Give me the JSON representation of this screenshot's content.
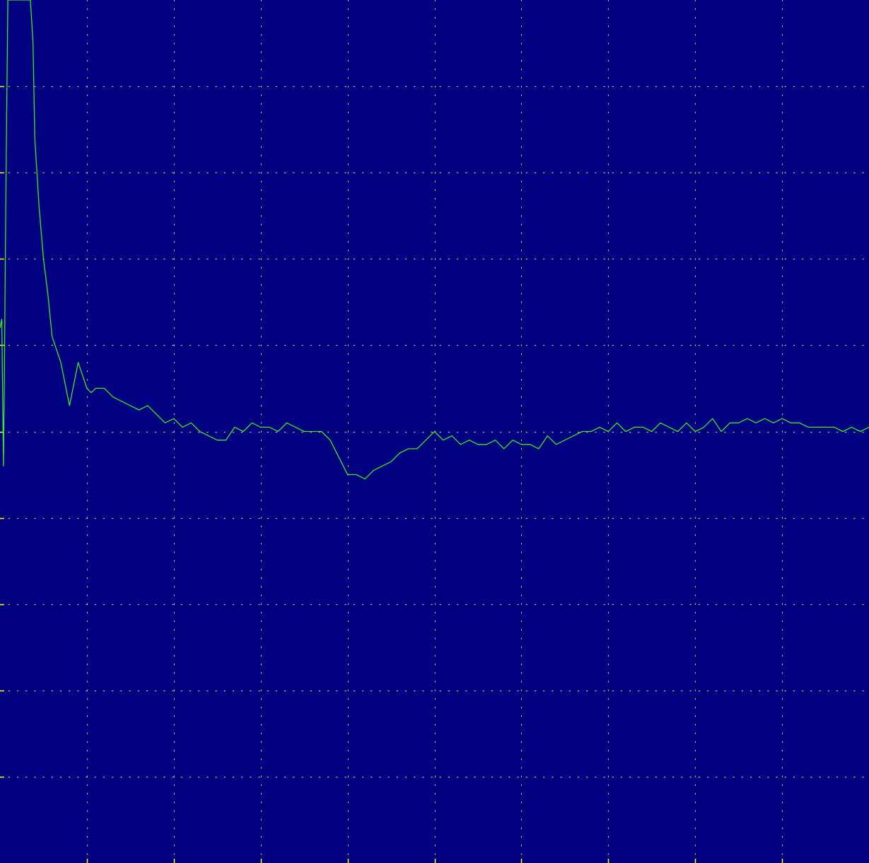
{
  "colors": {
    "background": "#000080",
    "grid": "#c8c864",
    "tick": "#ffff00",
    "trace": "#33ee22"
  },
  "chart_data": {
    "type": "line",
    "title": "",
    "xlabel": "",
    "ylabel": "",
    "x_divisions": 10,
    "y_divisions": 10,
    "xlim": [
      0,
      10
    ],
    "ylim": [
      -5,
      5
    ],
    "grid": true,
    "grid_style": "dotted",
    "series": [
      {
        "x": [
          0.0,
          0.02,
          0.04,
          0.05,
          0.07,
          0.09,
          0.1,
          0.12,
          0.15,
          0.2,
          0.25,
          0.3,
          0.35,
          0.38,
          0.4,
          0.45,
          0.5,
          0.55,
          0.6,
          0.7,
          0.8,
          0.9,
          1.0,
          1.05,
          1.1,
          1.2,
          1.3,
          1.4,
          1.5,
          1.6,
          1.7,
          1.8,
          1.9,
          2.0,
          2.1,
          2.2,
          2.3,
          2.4,
          2.5,
          2.6,
          2.7,
          2.8,
          2.9,
          3.0,
          3.1,
          3.2,
          3.3,
          3.4,
          3.5,
          3.6,
          3.7,
          3.8,
          3.9,
          4.0,
          4.1,
          4.2,
          4.3,
          4.4,
          4.5,
          4.6,
          4.7,
          4.8,
          4.9,
          5.0,
          5.1,
          5.2,
          5.3,
          5.4,
          5.5,
          5.6,
          5.7,
          5.8,
          5.9,
          6.0,
          6.1,
          6.2,
          6.3,
          6.4,
          6.5,
          6.6,
          6.7,
          6.8,
          6.9,
          7.0,
          7.1,
          7.2,
          7.3,
          7.4,
          7.5,
          7.6,
          7.7,
          7.8,
          7.9,
          8.0,
          8.1,
          8.2,
          8.3,
          8.4,
          8.5,
          8.6,
          8.7,
          8.8,
          8.9,
          9.0,
          9.1,
          9.2,
          9.3,
          9.4,
          9.5,
          9.6,
          9.7,
          9.8,
          9.9,
          10.0
        ],
        "y": [
          1.2,
          1.3,
          -0.4,
          0.6,
          3.0,
          5.0,
          5.0,
          5.0,
          5.0,
          5.0,
          5.0,
          5.0,
          5.0,
          4.5,
          3.4,
          2.6,
          2.0,
          1.6,
          1.1,
          0.8,
          0.3,
          0.8,
          0.5,
          0.45,
          0.5,
          0.5,
          0.4,
          0.35,
          0.3,
          0.25,
          0.3,
          0.2,
          0.1,
          0.15,
          0.05,
          0.1,
          0.0,
          -0.05,
          -0.1,
          -0.1,
          0.05,
          0.0,
          0.1,
          0.05,
          0.05,
          0.0,
          0.1,
          0.05,
          0.0,
          0.0,
          0.0,
          -0.1,
          -0.3,
          -0.5,
          -0.5,
          -0.55,
          -0.45,
          -0.4,
          -0.35,
          -0.25,
          -0.2,
          -0.2,
          -0.1,
          0.0,
          -0.1,
          -0.05,
          -0.15,
          -0.1,
          -0.15,
          -0.15,
          -0.1,
          -0.2,
          -0.1,
          -0.15,
          -0.15,
          -0.2,
          -0.05,
          -0.15,
          -0.1,
          -0.05,
          0.0,
          0.0,
          0.05,
          0.0,
          0.1,
          0.0,
          0.05,
          0.05,
          0.0,
          0.1,
          0.05,
          0.0,
          0.1,
          0.0,
          0.05,
          0.15,
          0.0,
          0.1,
          0.1,
          0.15,
          0.1,
          0.15,
          0.1,
          0.15,
          0.1,
          0.1,
          0.05,
          0.05,
          0.05,
          0.05,
          0.0,
          0.05,
          0.0,
          0.05
        ]
      }
    ]
  }
}
